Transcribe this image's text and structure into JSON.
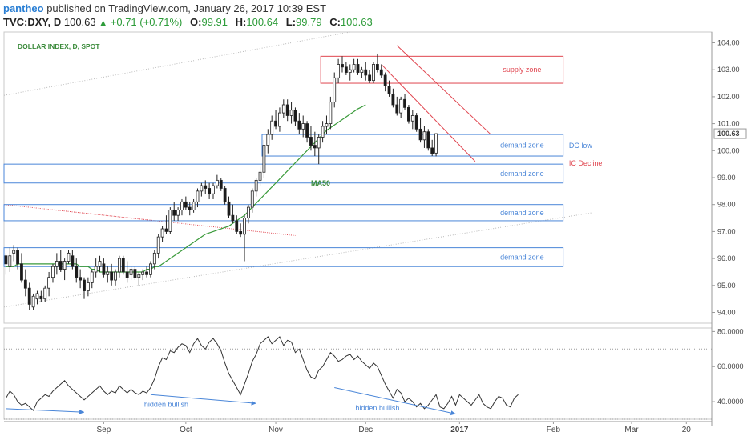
{
  "header": {
    "user": "pantheo",
    "published": "published on TradingView.com, January 26, 2017 10:39 EST",
    "symbol": "TVC:DXY, D",
    "last": "100.63",
    "change": "+0.71 (+0.71%)",
    "o_label": "O:",
    "o": "99.91",
    "h_label": "H:",
    "h": "100.64",
    "l_label": "L:",
    "l": "99.79",
    "c_label": "C:",
    "c": "100.63"
  },
  "colors": {
    "up_candle": "#ffffff",
    "down_candle": "#1a1a1a",
    "ma50": "#3a9a3a",
    "demand": "#4a86d8",
    "supply": "#e0454f",
    "rsi": "#333333",
    "arrow": "#4a86d8",
    "trendline_red": "#e0454f"
  },
  "chart_data": {
    "type": "candlestick",
    "title": "DOLLAR INDEX, D, SPOT",
    "y_range": [
      93.6,
      104.4
    ],
    "y_ticks": [
      94.0,
      95.0,
      96.0,
      97.0,
      98.0,
      99.0,
      100.0,
      101.0,
      102.0,
      103.0,
      104.0
    ],
    "y_tick_labels": [
      "94.00",
      "95.00",
      "96.00",
      "97.00",
      "98.00",
      "99.00",
      "100.00",
      "101.00",
      "102.00",
      "103.00",
      "104.00"
    ],
    "last_price_label": "100.63",
    "x_labels": [
      {
        "label": "Sep",
        "bar": 25
      },
      {
        "label": "Oct",
        "bar": 46
      },
      {
        "label": "Nov",
        "bar": 69
      },
      {
        "label": "Dec",
        "bar": 92
      },
      {
        "label": "2017",
        "bar": 116
      },
      {
        "label": "Feb",
        "bar": 140
      },
      {
        "label": "Mar",
        "bar": 160
      },
      {
        "label": "20",
        "bar": 174
      }
    ],
    "total_slots": 181,
    "ohlc": [
      [
        96.1,
        96.2,
        95.4,
        95.8
      ],
      [
        95.7,
        96.4,
        95.5,
        96.1
      ],
      [
        96.2,
        96.5,
        95.9,
        96.3
      ],
      [
        96.3,
        96.4,
        95.6,
        95.8
      ],
      [
        95.8,
        96.2,
        95.1,
        95.2
      ],
      [
        95.2,
        95.6,
        94.6,
        94.9
      ],
      [
        94.9,
        95.1,
        94.1,
        94.3
      ],
      [
        94.2,
        94.7,
        94.1,
        94.6
      ],
      [
        94.5,
        94.8,
        94.3,
        94.7
      ],
      [
        94.6,
        94.8,
        94.4,
        94.5
      ],
      [
        94.5,
        95.0,
        94.4,
        94.9
      ],
      [
        94.9,
        95.5,
        94.6,
        95.3
      ],
      [
        95.3,
        95.8,
        95.1,
        95.7
      ],
      [
        95.7,
        96.2,
        95.4,
        95.9
      ],
      [
        95.9,
        96.3,
        95.5,
        95.6
      ],
      [
        95.6,
        96.0,
        95.2,
        95.9
      ],
      [
        95.9,
        96.3,
        95.8,
        96.2
      ],
      [
        96.1,
        96.3,
        95.6,
        95.7
      ],
      [
        95.7,
        96.0,
        95.1,
        95.3
      ],
      [
        95.3,
        95.6,
        94.9,
        95.2
      ],
      [
        95.2,
        95.3,
        94.5,
        94.8
      ],
      [
        94.8,
        95.3,
        94.6,
        95.1
      ],
      [
        95.1,
        95.6,
        94.9,
        95.5
      ],
      [
        95.5,
        96.0,
        95.3,
        95.7
      ],
      [
        95.7,
        96.1,
        95.5,
        95.9
      ],
      [
        95.8,
        96.0,
        95.3,
        95.4
      ],
      [
        95.4,
        95.7,
        95.1,
        95.5
      ],
      [
        95.5,
        95.8,
        95.0,
        95.2
      ],
      [
        95.2,
        95.6,
        95.0,
        95.5
      ],
      [
        95.5,
        96.1,
        95.3,
        96.0
      ],
      [
        96.0,
        96.1,
        95.4,
        95.5
      ],
      [
        95.5,
        95.9,
        95.1,
        95.3
      ],
      [
        95.4,
        95.7,
        95.2,
        95.6
      ],
      [
        95.6,
        95.7,
        95.2,
        95.3
      ],
      [
        95.3,
        95.5,
        95.0,
        95.4
      ],
      [
        95.4,
        95.6,
        95.2,
        95.5
      ],
      [
        95.5,
        95.7,
        95.3,
        95.4
      ],
      [
        95.4,
        95.9,
        95.3,
        95.8
      ],
      [
        95.8,
        96.3,
        95.6,
        96.2
      ],
      [
        96.2,
        96.9,
        96.0,
        96.8
      ],
      [
        96.8,
        97.2,
        96.6,
        97.1
      ],
      [
        97.1,
        97.6,
        96.9,
        97.0
      ],
      [
        97.0,
        97.9,
        96.9,
        97.8
      ],
      [
        97.8,
        98.1,
        97.4,
        97.6
      ],
      [
        97.6,
        97.9,
        97.4,
        97.8
      ],
      [
        97.8,
        98.2,
        97.6,
        98.1
      ],
      [
        98.1,
        98.3,
        97.8,
        97.9
      ],
      [
        97.9,
        98.1,
        97.6,
        97.8
      ],
      [
        97.8,
        98.2,
        97.7,
        98.1
      ],
      [
        98.1,
        98.6,
        97.9,
        98.5
      ],
      [
        98.5,
        98.8,
        98.3,
        98.7
      ],
      [
        98.7,
        98.9,
        98.4,
        98.6
      ],
      [
        98.6,
        98.8,
        98.2,
        98.4
      ],
      [
        98.4,
        98.8,
        98.2,
        98.7
      ],
      [
        98.7,
        99.1,
        98.6,
        98.9
      ],
      [
        98.9,
        99.0,
        98.5,
        98.6
      ],
      [
        98.6,
        98.7,
        98.0,
        98.1
      ],
      [
        98.1,
        98.3,
        97.5,
        97.6
      ],
      [
        97.6,
        98.0,
        97.3,
        97.4
      ],
      [
        97.4,
        97.6,
        96.9,
        97.0
      ],
      [
        97.0,
        97.3,
        96.8,
        96.9
      ],
      [
        96.9,
        97.6,
        95.9,
        97.5
      ],
      [
        97.5,
        98.0,
        97.3,
        97.9
      ],
      [
        97.9,
        98.6,
        97.7,
        98.5
      ],
      [
        98.5,
        99.0,
        98.3,
        98.9
      ],
      [
        98.9,
        99.4,
        98.7,
        99.2
      ],
      [
        99.2,
        100.4,
        99.0,
        100.2
      ],
      [
        100.2,
        100.8,
        99.9,
        100.6
      ],
      [
        100.6,
        101.3,
        100.4,
        101.1
      ],
      [
        101.1,
        101.5,
        100.8,
        100.9
      ],
      [
        100.9,
        101.6,
        100.7,
        101.4
      ],
      [
        101.4,
        101.9,
        101.2,
        101.7
      ],
      [
        101.7,
        101.9,
        101.1,
        101.3
      ],
      [
        101.3,
        101.8,
        101.0,
        101.5
      ],
      [
        101.5,
        101.6,
        100.9,
        101.1
      ],
      [
        101.1,
        101.4,
        100.6,
        100.8
      ],
      [
        100.8,
        101.3,
        100.5,
        101.0
      ],
      [
        101.0,
        101.1,
        100.3,
        100.5
      ],
      [
        100.5,
        100.9,
        100.0,
        100.2
      ],
      [
        100.2,
        100.7,
        99.8,
        100.1
      ],
      [
        100.1,
        100.6,
        99.5,
        100.5
      ],
      [
        100.5,
        101.1,
        100.3,
        100.9
      ],
      [
        100.9,
        101.3,
        100.6,
        101.0
      ],
      [
        101.0,
        102.0,
        100.8,
        101.8
      ],
      [
        101.8,
        102.9,
        101.6,
        102.7
      ],
      [
        102.7,
        103.4,
        102.5,
        103.2
      ],
      [
        103.2,
        103.5,
        102.9,
        103.1
      ],
      [
        103.1,
        103.3,
        102.8,
        102.9
      ],
      [
        102.9,
        103.2,
        102.6,
        103.0
      ],
      [
        103.0,
        103.4,
        102.9,
        103.2
      ],
      [
        103.2,
        103.4,
        102.8,
        102.9
      ],
      [
        102.9,
        103.1,
        102.7,
        103.0
      ],
      [
        103.0,
        103.3,
        102.6,
        102.8
      ],
      [
        102.8,
        103.0,
        102.5,
        102.6
      ],
      [
        102.6,
        103.3,
        102.5,
        103.2
      ],
      [
        103.2,
        103.6,
        102.9,
        103.0
      ],
      [
        103.0,
        103.2,
        102.7,
        102.8
      ],
      [
        102.8,
        102.9,
        102.2,
        102.4
      ],
      [
        102.4,
        102.6,
        102.0,
        102.1
      ],
      [
        102.1,
        102.3,
        101.6,
        101.7
      ],
      [
        101.7,
        102.0,
        101.3,
        101.4
      ],
      [
        101.4,
        102.0,
        101.2,
        101.9
      ],
      [
        101.9,
        102.1,
        101.5,
        101.6
      ],
      [
        101.6,
        101.7,
        101.0,
        101.1
      ],
      [
        101.1,
        101.5,
        100.8,
        101.3
      ],
      [
        101.3,
        101.4,
        100.7,
        100.8
      ],
      [
        100.8,
        101.2,
        100.3,
        100.4
      ],
      [
        100.4,
        100.9,
        100.1,
        100.7
      ],
      [
        100.7,
        100.8,
        100.0,
        100.1
      ],
      [
        100.1,
        100.4,
        99.8,
        99.9
      ],
      [
        99.91,
        100.64,
        99.79,
        100.63
      ]
    ],
    "ma50": [
      95.7,
      95.7,
      95.7,
      95.8,
      95.8,
      95.8,
      95.8,
      95.8,
      95.8,
      95.8,
      95.8,
      95.8,
      95.8,
      95.8,
      95.8,
      95.8,
      95.8,
      95.8,
      95.8,
      95.7,
      95.7,
      95.7,
      95.6,
      95.6,
      95.5,
      95.5,
      95.5,
      95.5,
      95.5,
      95.5,
      95.5,
      95.5,
      95.5,
      95.5,
      95.5,
      95.5,
      95.6,
      95.6,
      95.7,
      95.7,
      95.8,
      95.9,
      96.0,
      96.1,
      96.2,
      96.3,
      96.4,
      96.5,
      96.6,
      96.7,
      96.8,
      96.9,
      96.95,
      97.0,
      97.05,
      97.1,
      97.15,
      97.2,
      97.3,
      97.4,
      97.5,
      97.6,
      97.75,
      97.9,
      98.05,
      98.2,
      98.35,
      98.5,
      98.65,
      98.8,
      98.95,
      99.1,
      99.25,
      99.4,
      99.55,
      99.7,
      99.85,
      100.0,
      100.15,
      100.3,
      100.45,
      100.6,
      100.75,
      100.85,
      100.95,
      101.05,
      101.15,
      101.25,
      101.35,
      101.45,
      101.55,
      101.62,
      101.7
    ],
    "ma50_start_bar": 0,
    "ma50_label": "MA50",
    "zones": [
      {
        "type": "supply",
        "label": "supply zone",
        "y1": 102.5,
        "y2": 103.5,
        "bar_start": 81,
        "bar_end": 143
      },
      {
        "type": "demand",
        "label": "demand zone",
        "y1": 99.8,
        "y2": 100.6,
        "bar_start": 66,
        "bar_end": 143
      },
      {
        "type": "demand",
        "label": "demand zone",
        "y1": 98.8,
        "y2": 99.5,
        "bar_start": 0,
        "bar_end": 143
      },
      {
        "type": "demand",
        "label": "demand zone",
        "y1": 97.4,
        "y2": 98.0,
        "bar_start": 0,
        "bar_end": 143
      },
      {
        "type": "demand",
        "label": "demand zone",
        "y1": 95.7,
        "y2": 96.4,
        "bar_start": 0,
        "bar_end": 143
      }
    ],
    "annotations": [
      {
        "text": "DC low",
        "y": 100.1,
        "bar": 144,
        "color": "#4a86d8"
      },
      {
        "text": "IC Decline",
        "y": 99.45,
        "bar": 144,
        "color": "#e0454f"
      }
    ],
    "rsi": {
      "y_range": [
        30,
        82
      ],
      "y_ticks": [
        40,
        60,
        80
      ],
      "y_tick_labels": [
        "40.0000",
        "60.0000",
        "80.0000"
      ],
      "upper_level": 70,
      "lower_level": 30,
      "values": [
        42,
        46,
        44,
        40,
        38,
        39,
        37,
        35,
        40,
        42,
        44,
        43,
        46,
        48,
        50,
        52,
        49,
        47,
        45,
        43,
        41,
        43,
        45,
        47,
        49,
        46,
        44,
        46,
        45,
        49,
        47,
        45,
        47,
        45,
        44,
        46,
        45,
        48,
        53,
        60,
        65,
        64,
        69,
        68,
        71,
        73,
        72,
        68,
        73,
        76,
        72,
        70,
        74,
        76,
        73,
        69,
        62,
        56,
        52,
        48,
        44,
        50,
        56,
        63,
        67,
        73,
        75,
        77,
        73,
        75,
        77,
        72,
        75,
        74,
        68,
        70,
        64,
        58,
        54,
        53,
        58,
        60,
        64,
        68,
        66,
        63,
        64,
        66,
        67,
        64,
        66,
        63,
        61,
        59,
        62,
        60,
        55,
        50,
        46,
        42,
        47,
        45,
        40,
        42,
        40,
        37,
        39,
        36,
        38,
        41,
        44,
        37,
        36,
        39,
        43,
        38,
        44,
        42,
        40,
        38,
        41,
        44,
        39,
        37,
        36,
        40,
        43,
        42,
        38,
        37,
        42,
        44
      ]
    },
    "rsi_annotations": [
      {
        "text": "hidden bullish",
        "x_bar": 41,
        "y": 37
      },
      {
        "text": "hidden bullish",
        "x_bar": 95,
        "y": 35
      }
    ]
  }
}
